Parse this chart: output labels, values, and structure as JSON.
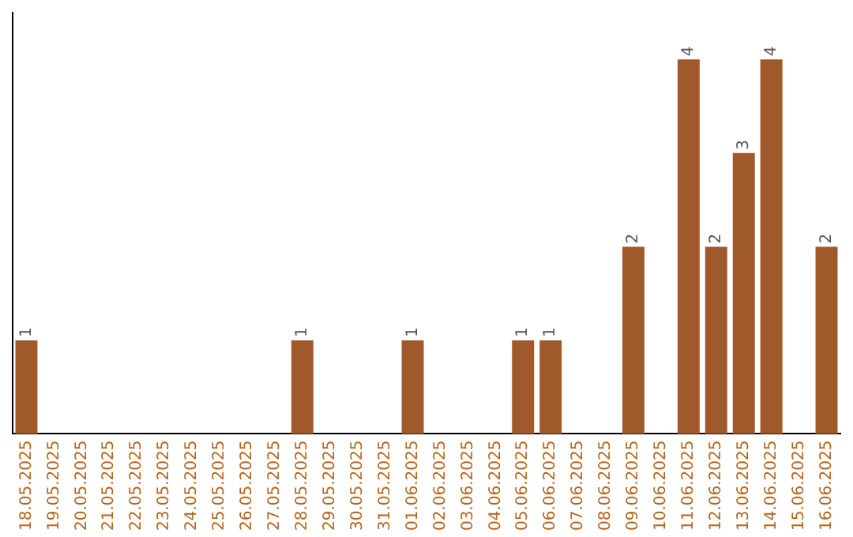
{
  "chart_data": {
    "type": "bar",
    "categories": [
      "18.05.2025",
      "19.05.2025",
      "20.05.2025",
      "21.05.2025",
      "22.05.2025",
      "23.05.2025",
      "24.05.2025",
      "25.05.2025",
      "26.05.2025",
      "27.05.2025",
      "28.05.2025",
      "29.05.2025",
      "30.05.2025",
      "31.05.2025",
      "01.06.2025",
      "02.06.2025",
      "03.06.2025",
      "04.06.2025",
      "05.06.2025",
      "06.06.2025",
      "07.06.2025",
      "08.06.2025",
      "09.06.2025",
      "10.06.2025",
      "11.06.2025",
      "12.06.2025",
      "13.06.2025",
      "14.06.2025",
      "15.06.2025",
      "16.06.2025"
    ],
    "values": [
      1,
      0,
      0,
      0,
      0,
      0,
      0,
      0,
      0,
      0,
      1,
      0,
      0,
      0,
      1,
      0,
      0,
      0,
      1,
      1,
      0,
      0,
      2,
      0,
      4,
      2,
      3,
      4,
      0,
      2
    ],
    "value_labels": [
      "1",
      null,
      null,
      null,
      null,
      null,
      null,
      null,
      null,
      null,
      "1",
      null,
      null,
      null,
      "1",
      null,
      null,
      null,
      "1",
      "1",
      null,
      null,
      "2",
      null,
      "4",
      "2",
      "3",
      "4",
      null,
      "2"
    ],
    "color": "#a0592a",
    "grid": false,
    "legend": false
  }
}
